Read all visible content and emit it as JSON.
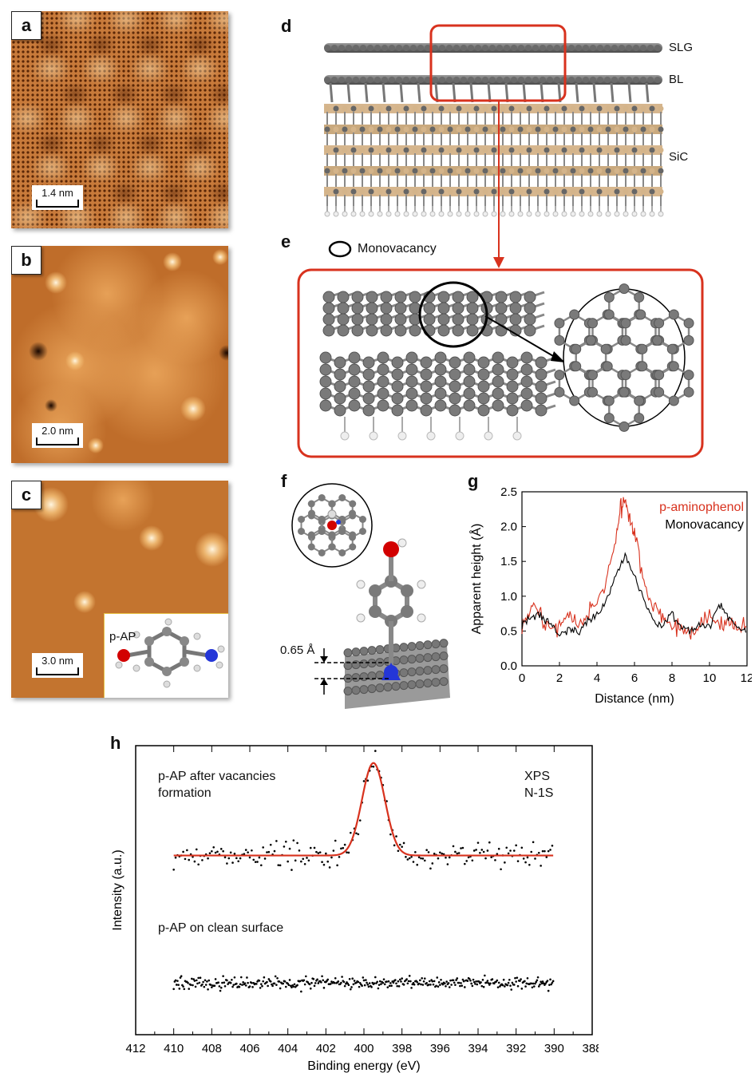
{
  "panels": {
    "a": {
      "letter": "a",
      "scale": "1.4 nm"
    },
    "b": {
      "letter": "b",
      "scale": "2.0 nm"
    },
    "c": {
      "letter": "c",
      "scale": "3.0 nm",
      "inset_label": "p-AP"
    },
    "d": {
      "letter": "d",
      "layers": [
        "SLG",
        "BL",
        "SiC"
      ]
    },
    "e": {
      "letter": "e",
      "legend": "Monovacancy"
    },
    "f": {
      "letter": "f",
      "distance": "0.65 Å"
    },
    "g": {
      "letter": "g"
    },
    "h": {
      "letter": "h",
      "label_top": "p-AP after vacancies",
      "label_top2": "formation",
      "label_bottom": "p-AP on clean surface",
      "tag1": "XPS",
      "tag2": "N-1S"
    }
  },
  "colors": {
    "red": "#d8321e",
    "graphene_atom": "#7c7c7c",
    "silicon": "#d4b48a",
    "oxygen": "#d20000",
    "nitrogen": "#2436d8",
    "stm_dark": "#7a3a10",
    "stm_light": "#f7d08f"
  },
  "chart_data": [
    {
      "type": "line",
      "panel": "g",
      "xlabel": "Distance (nm)",
      "ylabel": "Apparent height (Å)",
      "xlim": [
        0,
        12
      ],
      "ylim": [
        0,
        2.5
      ],
      "xticks": [
        0,
        2,
        4,
        6,
        8,
        10,
        12
      ],
      "yticks": [
        0.0,
        0.5,
        1.0,
        1.5,
        2.0,
        2.5
      ],
      "series": [
        {
          "name": "p-aminophenol",
          "color": "#d8321e",
          "x": [
            0,
            0.5,
            1,
            1.5,
            2,
            2.5,
            3,
            3.5,
            4,
            4.5,
            5,
            5.25,
            5.5,
            5.75,
            6,
            6.5,
            7,
            7.5,
            8,
            8.5,
            9,
            9.5,
            10,
            10.5,
            11,
            11.5,
            12
          ],
          "y": [
            0.6,
            0.85,
            0.7,
            0.5,
            0.6,
            0.75,
            0.55,
            0.7,
            0.95,
            1.2,
            1.8,
            2.3,
            2.35,
            2.1,
            1.9,
            1.2,
            0.85,
            0.7,
            0.55,
            0.5,
            0.45,
            0.6,
            0.75,
            0.6,
            0.65,
            0.5,
            0.55
          ]
        },
        {
          "name": "Monovacancy",
          "color": "#000000",
          "x": [
            0,
            0.5,
            1,
            1.5,
            2,
            2.5,
            3,
            3.5,
            4,
            4.5,
            5,
            5.5,
            6,
            6.5,
            7,
            7.5,
            8,
            8.5,
            9,
            9.5,
            10,
            10.5,
            11,
            11.5,
            12
          ],
          "y": [
            0.6,
            0.7,
            0.75,
            0.6,
            0.45,
            0.55,
            0.5,
            0.65,
            0.75,
            0.95,
            1.3,
            1.6,
            1.3,
            0.95,
            0.65,
            0.55,
            0.75,
            0.55,
            0.5,
            0.6,
            0.55,
            0.9,
            0.7,
            0.55,
            0.5
          ]
        }
      ]
    },
    {
      "type": "scatter",
      "panel": "h",
      "xlabel": "Binding energy (eV)",
      "ylabel": "Intensity (a.u.)",
      "xlim": [
        412,
        388
      ],
      "xticks": [
        412,
        410,
        408,
        406,
        404,
        402,
        400,
        398,
        396,
        394,
        392,
        390,
        388
      ],
      "series": [
        {
          "name": "p-AP after vacancies formation",
          "x_range": [
            410,
            390
          ],
          "baseline": 0.62,
          "peak_center": 399.5,
          "peak_height": 0.32,
          "peak_width": 0.85
        },
        {
          "name": "p-AP on clean surface",
          "x_range": [
            410,
            390
          ],
          "baseline": 0.18,
          "peak_height": 0
        }
      ]
    }
  ]
}
